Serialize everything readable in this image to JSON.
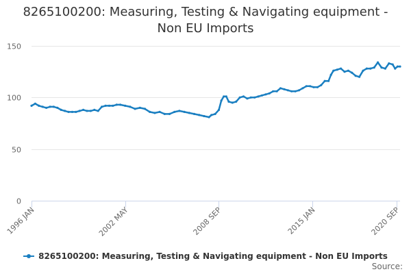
{
  "page": {
    "source_label": "Source:"
  },
  "colors": {
    "series": "#1a7fc1",
    "grid": "#e6e6e6",
    "axis": "#ccd6eb",
    "text": "#666666"
  },
  "chart_data": {
    "type": "line",
    "title_line1": "8265100200: Measuring, Testing & Navigating equipment -",
    "title_line2": "Non EU Imports",
    "xlabel": "",
    "ylabel": "",
    "ylim": [
      0,
      150
    ],
    "yticks": [
      0,
      50,
      100,
      150
    ],
    "xlim": [
      "1996-01",
      "2020-12"
    ],
    "xticks": [
      {
        "label": "1996 JAN",
        "date": "1996-01"
      },
      {
        "label": "2002 MAY",
        "date": "2002-05"
      },
      {
        "label": "2008 SEP",
        "date": "2008-09"
      },
      {
        "label": "2015 JAN",
        "date": "2015-01"
      },
      {
        "label": "2020 SEP",
        "date": "2020-09"
      }
    ],
    "grid": true,
    "legend_position": "bottom-center",
    "series": [
      {
        "name": "8265100200: Measuring, Testing & Navigating equipment - Non EU Imports",
        "points": [
          [
            "1996-01",
            92
          ],
          [
            "1996-04",
            94
          ],
          [
            "1996-07",
            92
          ],
          [
            "1996-10",
            91
          ],
          [
            "1997-01",
            90
          ],
          [
            "1997-04",
            91
          ],
          [
            "1997-07",
            91
          ],
          [
            "1997-10",
            90
          ],
          [
            "1998-01",
            88
          ],
          [
            "1998-04",
            87
          ],
          [
            "1998-07",
            86
          ],
          [
            "1998-10",
            86
          ],
          [
            "1999-01",
            86
          ],
          [
            "1999-04",
            87
          ],
          [
            "1999-07",
            88
          ],
          [
            "1999-10",
            87
          ],
          [
            "2000-01",
            87
          ],
          [
            "2000-04",
            88
          ],
          [
            "2000-07",
            87
          ],
          [
            "2000-10",
            91
          ],
          [
            "2001-01",
            92
          ],
          [
            "2001-04",
            92
          ],
          [
            "2001-07",
            92
          ],
          [
            "2001-10",
            93
          ],
          [
            "2002-01",
            93
          ],
          [
            "2002-05",
            92
          ],
          [
            "2002-09",
            91
          ],
          [
            "2003-01",
            89
          ],
          [
            "2003-05",
            90
          ],
          [
            "2003-09",
            89
          ],
          [
            "2004-01",
            86
          ],
          [
            "2004-05",
            85
          ],
          [
            "2004-09",
            86
          ],
          [
            "2005-01",
            84
          ],
          [
            "2005-05",
            84
          ],
          [
            "2005-09",
            86
          ],
          [
            "2006-01",
            87
          ],
          [
            "2006-05",
            86
          ],
          [
            "2006-09",
            85
          ],
          [
            "2007-01",
            84
          ],
          [
            "2007-05",
            83
          ],
          [
            "2007-09",
            82
          ],
          [
            "2008-01",
            81
          ],
          [
            "2008-03",
            83
          ],
          [
            "2008-06",
            84
          ],
          [
            "2008-09",
            88
          ],
          [
            "2008-11",
            97
          ],
          [
            "2009-01",
            101
          ],
          [
            "2009-03",
            101
          ],
          [
            "2009-05",
            96
          ],
          [
            "2009-08",
            95
          ],
          [
            "2009-11",
            96
          ],
          [
            "2010-02",
            100
          ],
          [
            "2010-05",
            101
          ],
          [
            "2010-08",
            99
          ],
          [
            "2010-11",
            100
          ],
          [
            "2011-02",
            100
          ],
          [
            "2011-05",
            101
          ],
          [
            "2011-08",
            102
          ],
          [
            "2011-11",
            103
          ],
          [
            "2012-02",
            104
          ],
          [
            "2012-05",
            106
          ],
          [
            "2012-08",
            106
          ],
          [
            "2012-11",
            109
          ],
          [
            "2013-02",
            108
          ],
          [
            "2013-05",
            107
          ],
          [
            "2013-08",
            106
          ],
          [
            "2013-11",
            106
          ],
          [
            "2014-02",
            107
          ],
          [
            "2014-05",
            109
          ],
          [
            "2014-08",
            111
          ],
          [
            "2014-11",
            111
          ],
          [
            "2015-02",
            110
          ],
          [
            "2015-05",
            110
          ],
          [
            "2015-08",
            112
          ],
          [
            "2015-11",
            116
          ],
          [
            "2016-02",
            116
          ],
          [
            "2016-04",
            122
          ],
          [
            "2016-06",
            126
          ],
          [
            "2016-09",
            127
          ],
          [
            "2016-12",
            128
          ],
          [
            "2017-03",
            125
          ],
          [
            "2017-06",
            126
          ],
          [
            "2017-09",
            124
          ],
          [
            "2017-12",
            121
          ],
          [
            "2018-03",
            120
          ],
          [
            "2018-06",
            126
          ],
          [
            "2018-09",
            128
          ],
          [
            "2018-12",
            128
          ],
          [
            "2019-03",
            129
          ],
          [
            "2019-06",
            134
          ],
          [
            "2019-09",
            129
          ],
          [
            "2019-12",
            128
          ],
          [
            "2020-03",
            133
          ],
          [
            "2020-06",
            132
          ],
          [
            "2020-08",
            128
          ],
          [
            "2020-10",
            130
          ],
          [
            "2020-12",
            130
          ]
        ]
      }
    ]
  }
}
